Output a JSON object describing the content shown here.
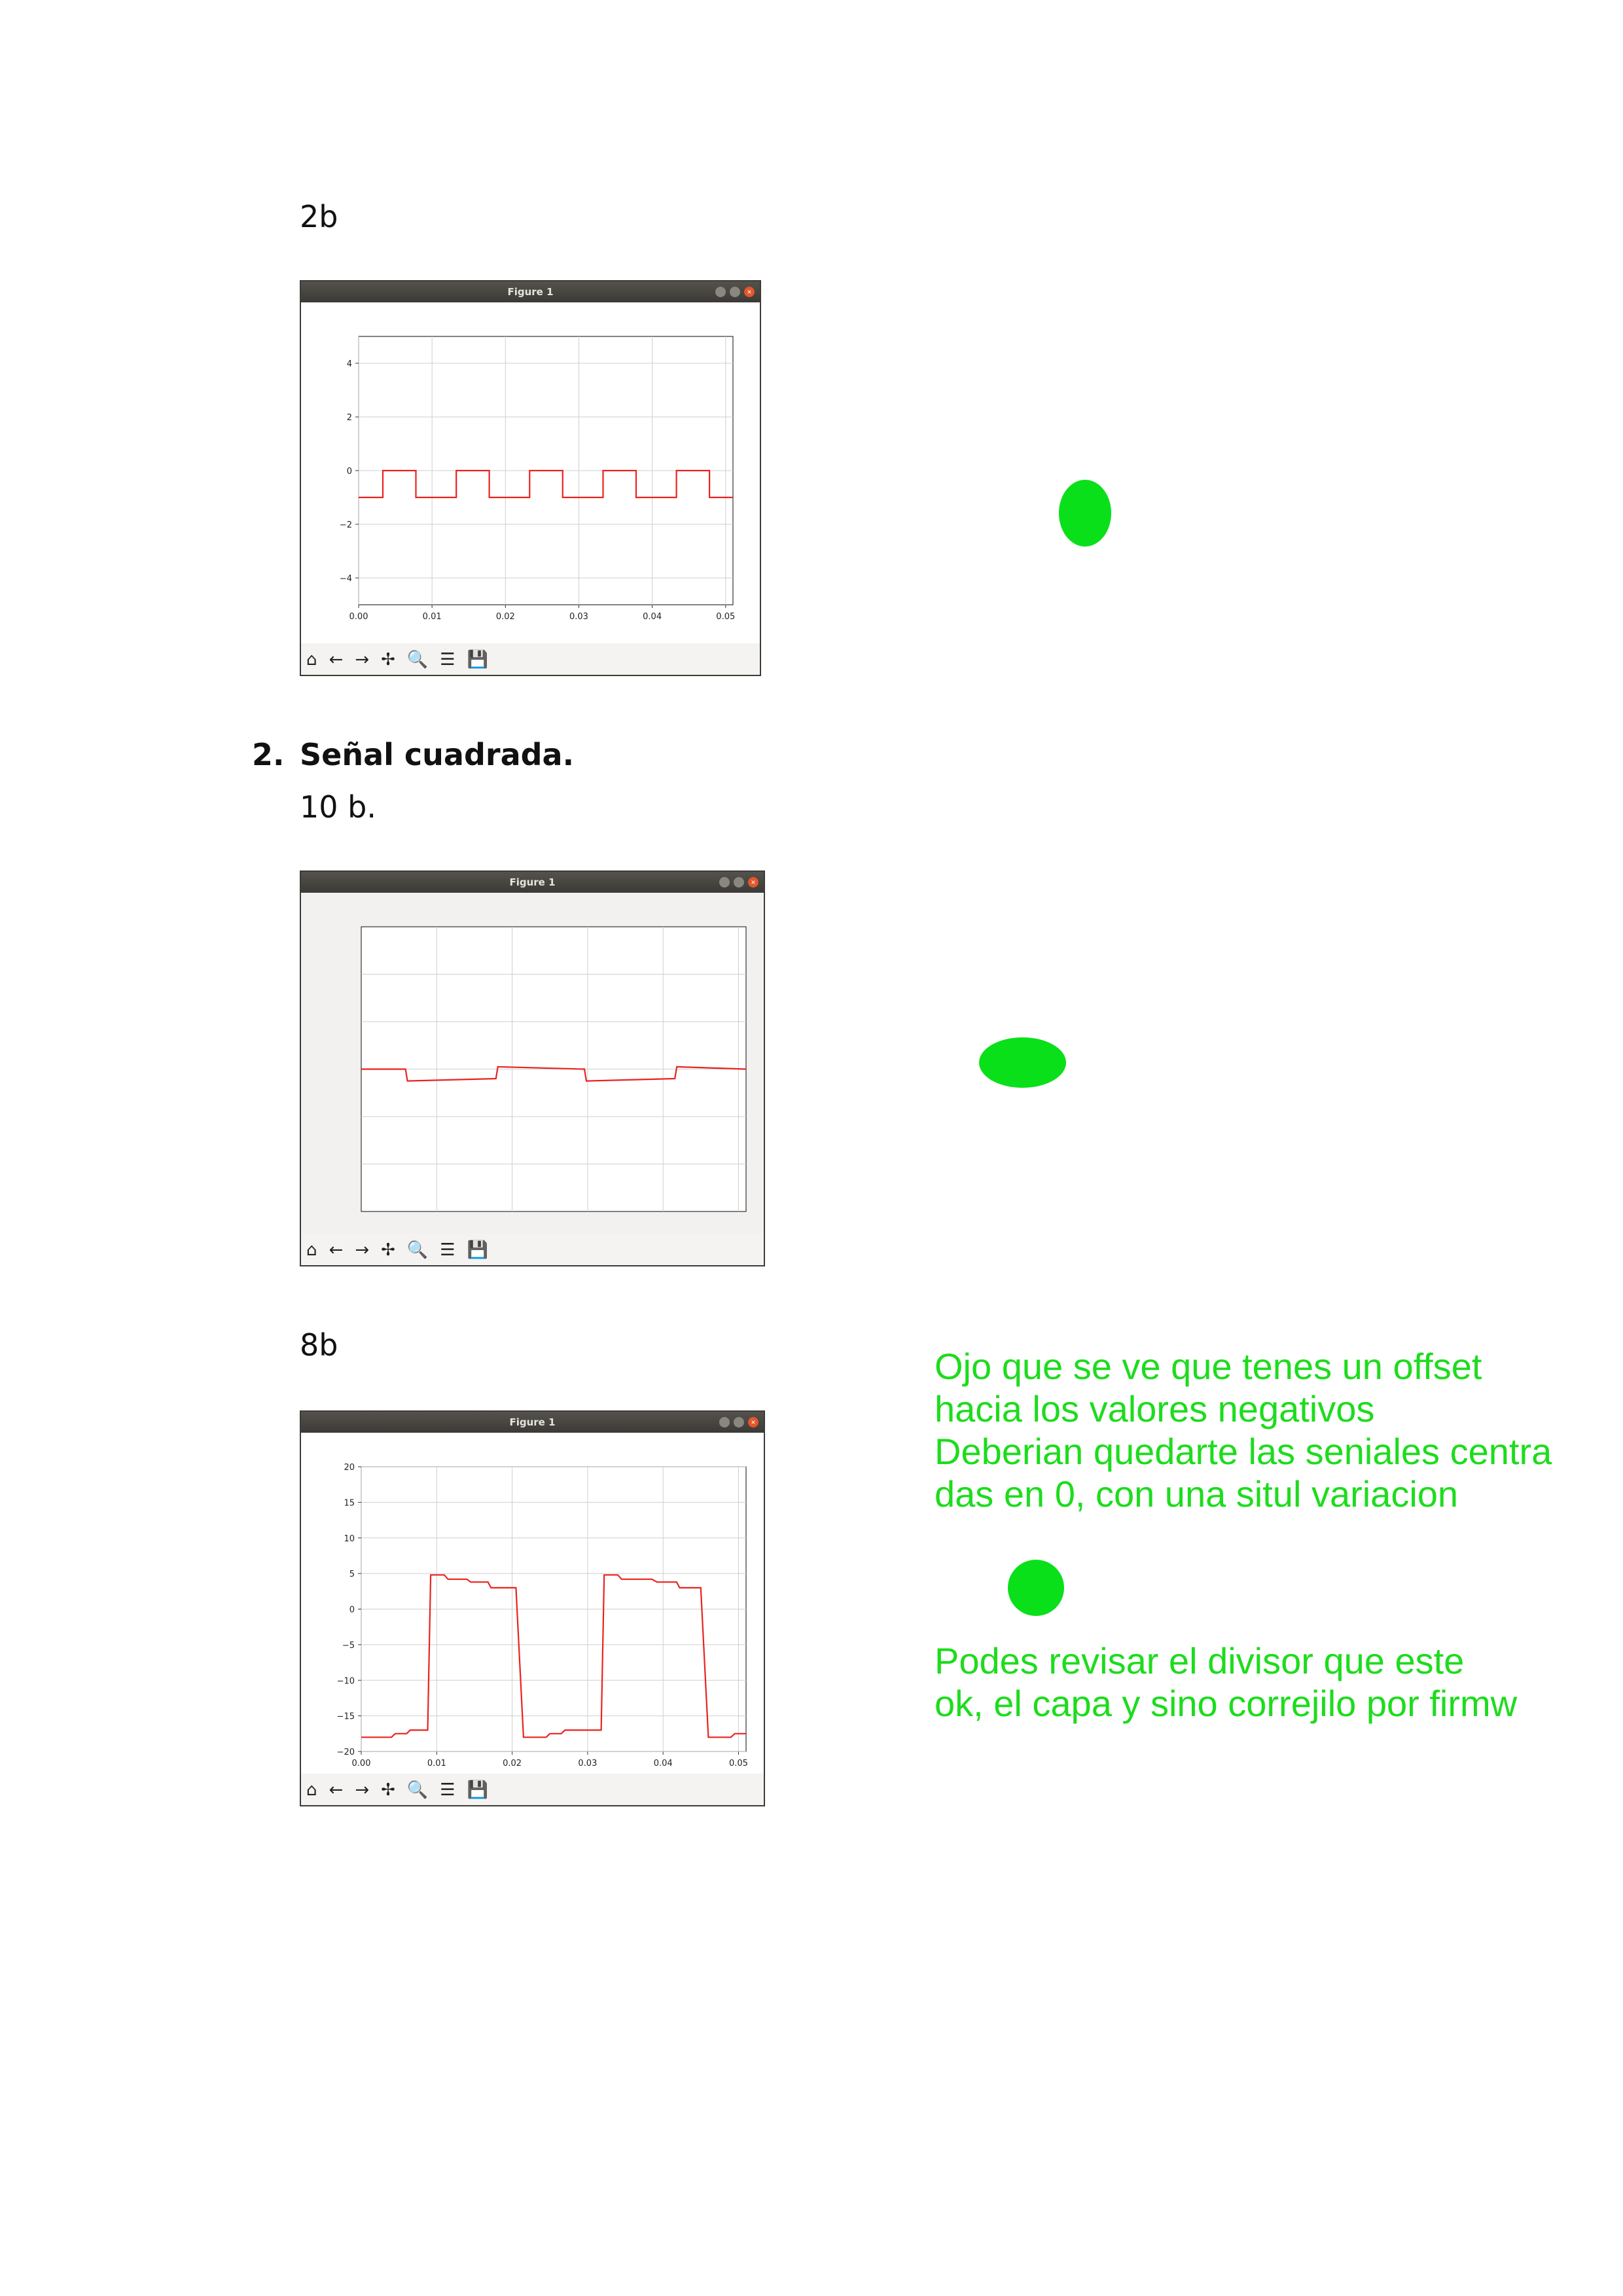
{
  "labels": {
    "fig1": "2b",
    "heading_number": "2.",
    "heading_text": "Señal cuadrada.",
    "fig2": "10 b.",
    "fig3": "8b"
  },
  "window": {
    "title": "Figure 1",
    "close_glyph": "×",
    "toolbar": [
      "home-icon",
      "back-arrow-icon",
      "forward-arrow-icon",
      "pan-icon",
      "zoom-icon",
      "configure-subplots-icon",
      "save-icon"
    ],
    "toolbar_glyphs": [
      "⌂",
      "←",
      "→",
      "✢",
      "🔍",
      "☰",
      "💾"
    ]
  },
  "colors": {
    "signal": "#e8231f",
    "annotation": "#1ddc1d",
    "marker": "#09e01a"
  },
  "comments": {
    "c1": "Ojo que se ve que tenes un offset\nhacia los valores negativos\nDeberian quedarte las seniales centra\ndas en 0, con una situl variacion",
    "c2": "Podes revisar el divisor que este\nok, el capa y sino correjilo por firmw"
  },
  "chart_data": [
    {
      "type": "line",
      "title": "",
      "xlabel": "",
      "ylabel": "",
      "xlim": [
        0,
        0.051
      ],
      "ylim": [
        -5,
        5
      ],
      "xticks": [
        "0.00",
        "0.01",
        "0.02",
        "0.03",
        "0.04",
        "0.05"
      ],
      "yticks": [
        "4",
        "2",
        "0",
        "−2",
        "−4"
      ],
      "grid": true,
      "series": [
        {
          "x": [
            0,
            0.0033,
            0.0033,
            0.0078,
            0.0078,
            0.0133,
            0.0133,
            0.0178,
            0.0178,
            0.0233,
            0.0233,
            0.0278,
            0.0278,
            0.0333,
            0.0333,
            0.0378,
            0.0378,
            0.0433,
            0.0433,
            0.0478,
            0.0478,
            0.051
          ],
          "y": [
            -1,
            -1,
            0,
            0,
            -1,
            -1,
            0,
            0,
            -1,
            -1,
            0,
            0,
            -1,
            -1,
            0,
            0,
            -1,
            -1,
            0,
            0,
            -1,
            -1
          ]
        }
      ]
    },
    {
      "type": "line",
      "title": "",
      "xlabel": "",
      "ylabel": "",
      "xlim": [
        0,
        1
      ],
      "ylim": [
        0,
        6
      ],
      "xticks": [],
      "yticks": [],
      "grid": true,
      "series": [
        {
          "x": [
            0,
            0.115,
            0.12,
            0.35,
            0.355,
            0.58,
            0.585,
            0.815,
            0.82,
            1
          ],
          "y": [
            3.0,
            3.0,
            2.75,
            2.8,
            3.05,
            3.0,
            2.75,
            2.8,
            3.05,
            3.0
          ]
        }
      ]
    },
    {
      "type": "line",
      "title": "",
      "xlabel": "",
      "ylabel": "",
      "xlim": [
        0,
        0.051
      ],
      "ylim": [
        -20,
        20
      ],
      "xticks": [
        "0.00",
        "0.01",
        "0.02",
        "0.03",
        "0.04",
        "0.05"
      ],
      "yticks": [
        "20",
        "15",
        "10",
        "5",
        "0",
        "−5",
        "−10",
        "−15",
        "−20"
      ],
      "grid": true,
      "series": [
        {
          "x": [
            0,
            0.004,
            0.0045,
            0.006,
            0.0065,
            0.0088,
            0.0092,
            0.011,
            0.0115,
            0.014,
            0.0145,
            0.0168,
            0.0172,
            0.0205,
            0.0215,
            0.0245,
            0.025,
            0.0265,
            0.027,
            0.0318,
            0.0322,
            0.034,
            0.0345,
            0.0385,
            0.0392,
            0.0418,
            0.0422,
            0.045,
            0.046,
            0.049,
            0.0495,
            0.051
          ],
          "y": [
            -18,
            -18,
            -17.5,
            -17.5,
            -17,
            -17,
            4.8,
            4.8,
            4.2,
            4.2,
            3.8,
            3.8,
            3.0,
            3.0,
            -18,
            -18,
            -17.5,
            -17.5,
            -17,
            -17,
            4.8,
            4.8,
            4.2,
            4.2,
            3.8,
            3.8,
            3.0,
            3.0,
            -18,
            -18,
            -17.5,
            -17.5
          ]
        }
      ]
    }
  ]
}
